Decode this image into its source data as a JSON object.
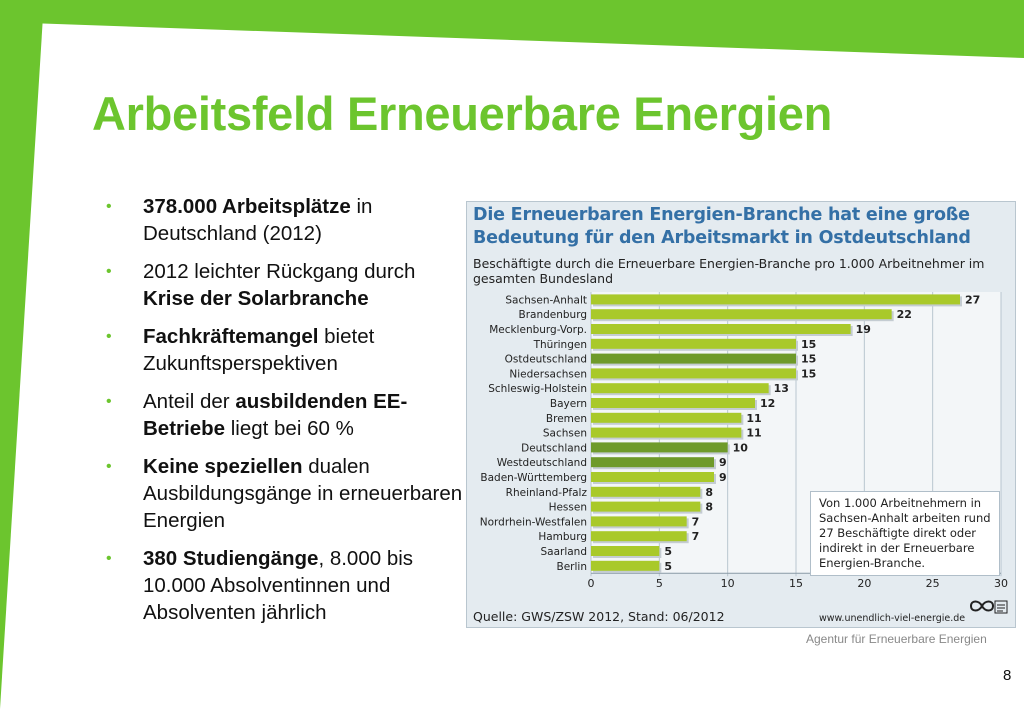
{
  "slide": {
    "title": "Arbeitsfeld Erneuerbare Energien",
    "accent_color": "#6cc52e",
    "page_number": "8",
    "footer_agency": "Agentur für Erneuerbare Energien"
  },
  "bullets": [
    {
      "parts": [
        {
          "text": "378.000 Arbeitsplätze",
          "bold": true
        },
        {
          "text": " in Deutschland (2012)",
          "bold": false
        }
      ]
    },
    {
      "parts": [
        {
          "text": "2012 leichter Rückgang durch ",
          "bold": false
        },
        {
          "text": "Krise der Solarbranche",
          "bold": true
        }
      ]
    },
    {
      "parts": [
        {
          "text": "Fachkräftemangel",
          "bold": true
        },
        {
          "text": " bietet Zukunftsperspektiven",
          "bold": false
        }
      ]
    },
    {
      "parts": [
        {
          "text": "Anteil der ",
          "bold": false
        },
        {
          "text": "ausbildenden EE-Betriebe",
          "bold": true
        },
        {
          "text": " liegt bei 60 %",
          "bold": false
        }
      ]
    },
    {
      "parts": [
        {
          "text": "Keine speziellen",
          "bold": true
        },
        {
          "text": " dualen Ausbildungsgänge in erneuerbaren Energien",
          "bold": false
        }
      ]
    },
    {
      "parts": [
        {
          "text": "380 Studiengänge",
          "bold": true
        },
        {
          "text": ", 8.000 bis 10.000 Absolventinnen und Absolventen jährlich",
          "bold": false
        }
      ]
    }
  ],
  "chart_data": {
    "type": "bar",
    "orientation": "horizontal",
    "title": "Die Erneuerbaren Energien-Branche hat eine große Bedeutung für den Arbeitsmarkt in Ostdeutschland",
    "subtitle": "Beschäftigte durch die Erneuerbare Energien-Branche pro 1.000 Arbeitnehmer im gesamten Bundesland",
    "categories": [
      "Sachsen-Anhalt",
      "Brandenburg",
      "Mecklenburg-Vorp.",
      "Thüringen",
      "Ostdeutschland",
      "Niedersachsen",
      "Schleswig-Holstein",
      "Bayern",
      "Bremen",
      "Sachsen",
      "Deutschland",
      "Westdeutschland",
      "Baden-Württemberg",
      "Rheinland-Pfalz",
      "Hessen",
      "Nordrhein-Westfalen",
      "Hamburg",
      "Saarland",
      "Berlin"
    ],
    "values": [
      27,
      22,
      19,
      15,
      15,
      15,
      13,
      12,
      11,
      11,
      10,
      9,
      9,
      8,
      8,
      7,
      7,
      5,
      5
    ],
    "highlighted": [
      "Ostdeutschland",
      "Deutschland",
      "Westdeutschland"
    ],
    "xlim": [
      0,
      30
    ],
    "xticks": [
      0,
      5,
      10,
      15,
      20,
      25,
      30
    ],
    "grid": true,
    "bar_color": "#a9c92a",
    "highlight_color": "#6e9a2a",
    "title_color": "#3470a6",
    "note": "Von 1.000 Arbeitnehmern in Sachsen-Anhalt arbeiten rund 27 Beschäftigte direkt oder indirekt in der Erneuerbare Energien-Branche.",
    "source": "Quelle: GWS/ZSW 2012, Stand: 06/2012",
    "url": "www.unendlich-viel-energie.de",
    "logo_text": "Agentur für Erneuerbare Energien"
  }
}
